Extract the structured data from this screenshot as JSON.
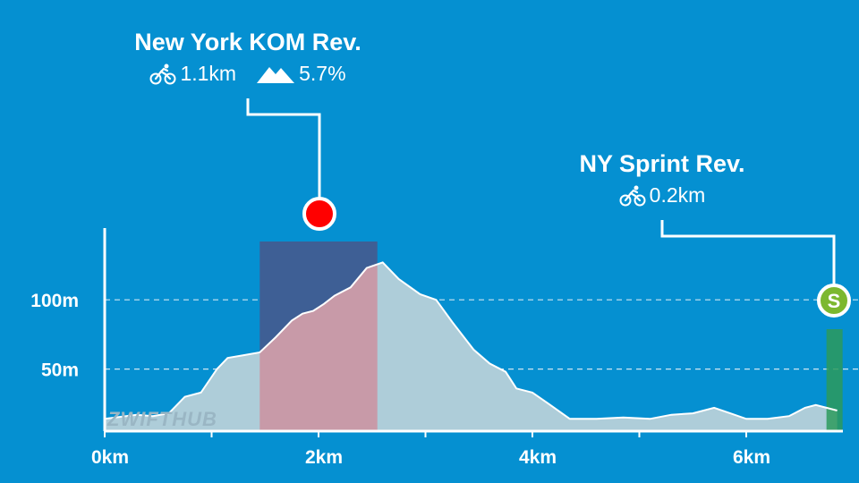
{
  "chart_data": {
    "type": "area",
    "xlabel": "",
    "ylabel": "",
    "xlim": [
      0,
      6.85
    ],
    "ylim": [
      0,
      150
    ],
    "x_ticks": [
      {
        "value": 0,
        "label": "0km"
      },
      {
        "value": 2,
        "label": "2km"
      },
      {
        "value": 4,
        "label": "4km"
      },
      {
        "value": 6,
        "label": "6km"
      }
    ],
    "y_ticks": [
      {
        "value": 50,
        "label": "50m"
      },
      {
        "value": 100,
        "label": "100m"
      }
    ],
    "grid": "horizontal dashed at y ticks",
    "series": [
      {
        "x": [
          0,
          0.1,
          0.3,
          0.45,
          0.6,
          0.75,
          0.9,
          1.05,
          1.15,
          1.3,
          1.45,
          1.6,
          1.75,
          1.85,
          1.95,
          2.05,
          2.15,
          2.3,
          2.45,
          2.6,
          2.75,
          2.95,
          3.1,
          3.25,
          3.45,
          3.6,
          3.75,
          3.85,
          4.0,
          4.15,
          4.35,
          4.6,
          4.85,
          5.1,
          5.3,
          5.5,
          5.7,
          5.85,
          6.0,
          6.2,
          6.4,
          6.55,
          6.65,
          6.75,
          6.85
        ],
        "y": [
          14,
          15,
          17,
          16,
          18,
          30,
          33,
          50,
          58,
          60,
          62,
          73,
          85,
          90,
          92,
          97,
          103,
          109,
          123,
          127,
          115,
          104,
          100,
          84,
          64,
          54,
          48,
          36,
          33,
          25,
          14,
          14,
          15,
          14,
          17,
          18,
          22,
          18,
          14,
          14,
          16,
          22,
          24,
          22,
          20
        ]
      }
    ],
    "segments": [
      {
        "type": "climb",
        "name": "New York KOM Rev.",
        "start_km": 1.45,
        "end_km": 2.55,
        "distance": "1.1km",
        "gradient": "5.7%",
        "color": "#ff0000"
      },
      {
        "type": "sprint",
        "name": "NY Sprint Rev.",
        "start_km": 6.7,
        "end_km": 6.85,
        "distance": "0.2km",
        "badge": "S",
        "color": "#3a9d23"
      }
    ]
  },
  "kom_label": {
    "name": "New York KOM Rev.",
    "distance": "1.1km",
    "gradient": "5.7%"
  },
  "sprint_label": {
    "name": "NY Sprint Rev.",
    "distance": "0.2km",
    "badge": "S"
  },
  "watermark": {
    "part1": "ZWIFT",
    "part2": "HUB"
  },
  "colors": {
    "background": "#0590d1",
    "profile_fill": "#aecdd9",
    "kom_band": "#3e5f95",
    "kom_overlay": "#c89aa8",
    "kom_marker": "#ff0000",
    "sprint_band": "#2d9a5c",
    "sprint_badge": "#7cb82f"
  },
  "icons": {
    "bike": "cyclist-icon",
    "mountain": "mountain-icon"
  }
}
